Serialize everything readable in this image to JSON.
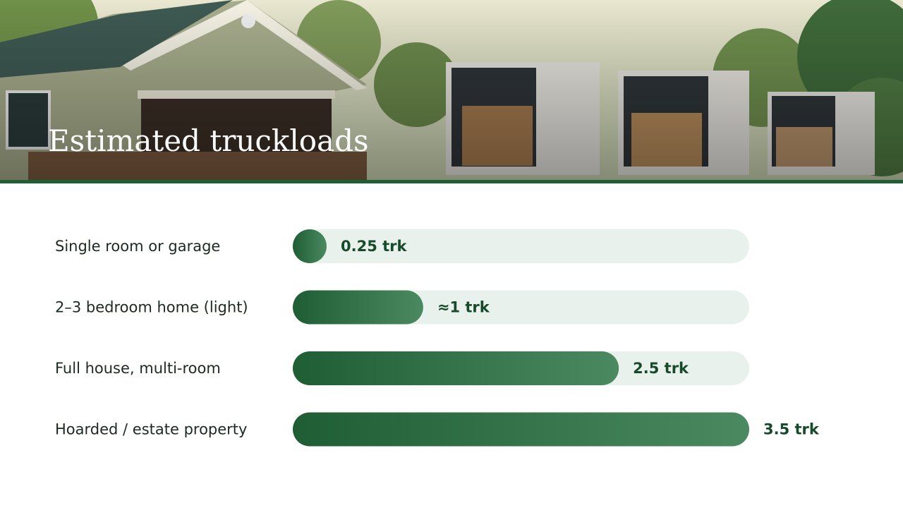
{
  "chart_data": {
    "type": "bar",
    "orientation": "horizontal",
    "title": "Estimated truckloads",
    "categories": [
      "Single room or garage",
      "2–3 bedroom home (light)",
      "Full house, multi-room",
      "Hoarded / estate property"
    ],
    "values": [
      0.25,
      1,
      2.5,
      3.5
    ],
    "value_labels": [
      "0.25 trk",
      "≈1 trk",
      "2.5 trk",
      "3.5 trk"
    ],
    "color": "#1f5e34",
    "xlim": [
      0,
      3.5
    ]
  }
}
